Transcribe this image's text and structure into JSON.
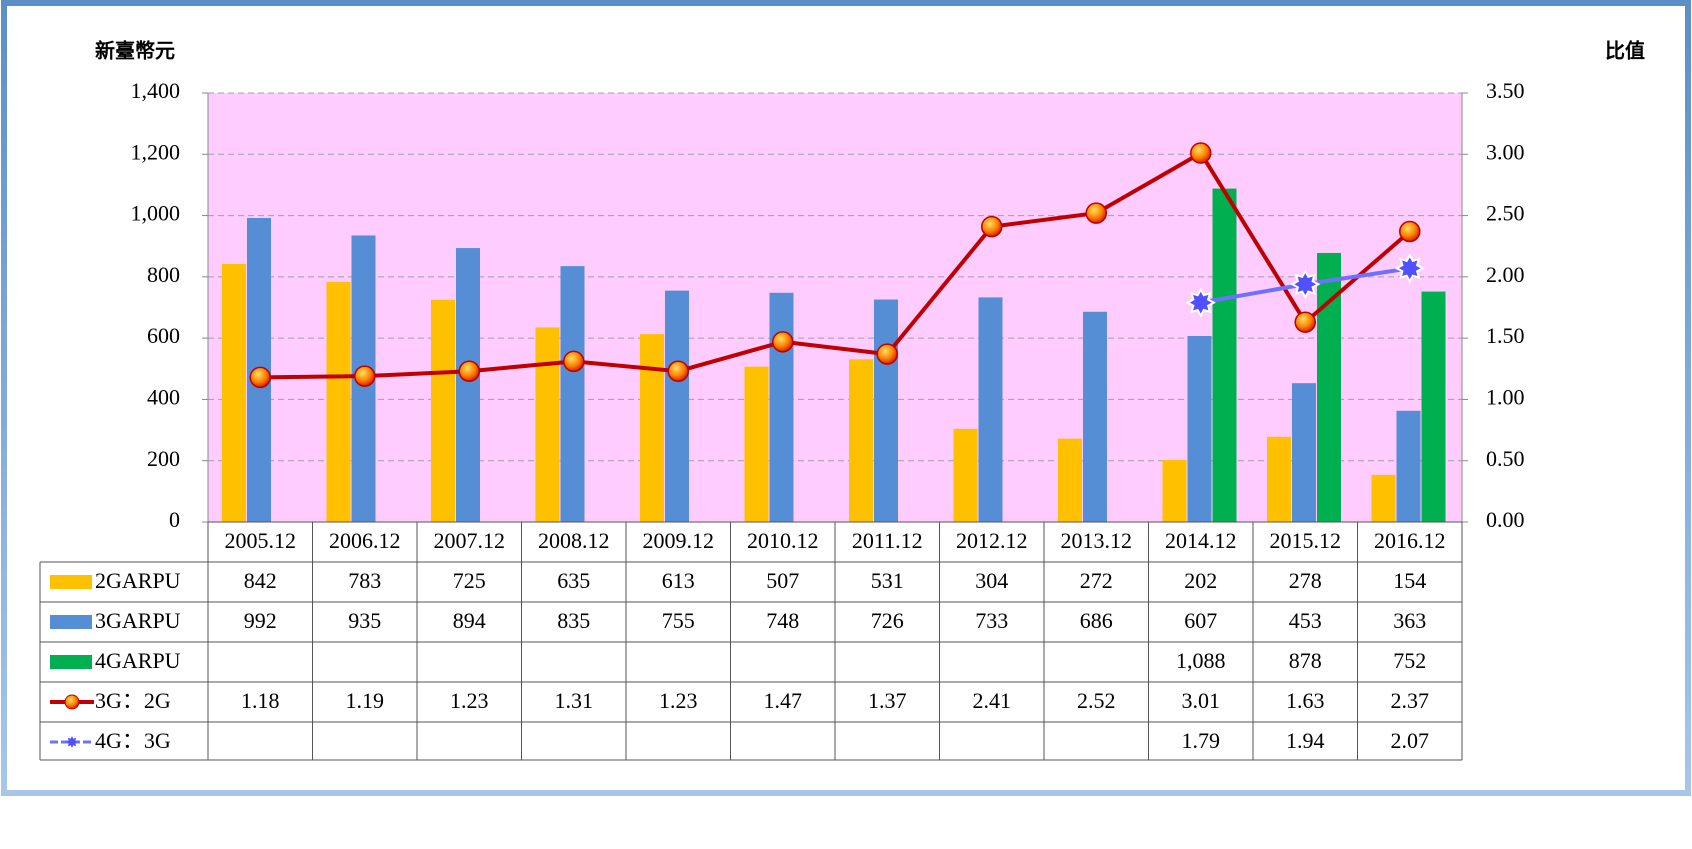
{
  "chart_data": {
    "type": "bar",
    "y_label": "新臺幣元",
    "y2_label": "比值",
    "categories": [
      "2005.12",
      "2006.12",
      "2007.12",
      "2008.12",
      "2009.12",
      "2010.12",
      "2011.12",
      "2012.12",
      "2013.12",
      "2014.12",
      "2015.12",
      "2016.12"
    ],
    "series": [
      {
        "name": "2GARPU",
        "type": "bar",
        "color": "#ffc000",
        "values": [
          842,
          783,
          725,
          635,
          613,
          507,
          531,
          304,
          272,
          202,
          278,
          154
        ]
      },
      {
        "name": "3GARPU",
        "type": "bar",
        "color": "#558ed5",
        "values": [
          992,
          935,
          894,
          835,
          755,
          748,
          726,
          733,
          686,
          607,
          453,
          363
        ]
      },
      {
        "name": "4GARPU",
        "type": "bar",
        "color": "#00b050",
        "values": [
          null,
          null,
          null,
          null,
          null,
          null,
          null,
          null,
          null,
          1088,
          878,
          752
        ],
        "value_labels": [
          null,
          null,
          null,
          null,
          null,
          null,
          null,
          null,
          null,
          "1,088",
          "878",
          "752"
        ]
      },
      {
        "name": "3G：2G",
        "type": "line",
        "axis": "y2",
        "color": "#c00000",
        "marker": "circle",
        "values": [
          1.18,
          1.19,
          1.23,
          1.31,
          1.23,
          1.47,
          1.37,
          2.41,
          2.52,
          3.01,
          1.63,
          2.37
        ]
      },
      {
        "name": "4G：3G",
        "type": "line",
        "axis": "y2",
        "color": "#7070ff",
        "marker": "star",
        "values": [
          null,
          null,
          null,
          null,
          null,
          null,
          null,
          null,
          null,
          1.79,
          1.94,
          2.07
        ]
      }
    ],
    "ylim": [
      0,
      1400
    ],
    "yticks": [
      0,
      200,
      400,
      600,
      800,
      {
        "value": 1000,
        "label": "1,000"
      },
      {
        "value": 1200,
        "label": "1,200"
      },
      {
        "value": 1400,
        "label": "1,400"
      }
    ],
    "y2lim": [
      0,
      3.5
    ],
    "y2ticks": [
      {
        "value": 0,
        "label": "0.00"
      },
      {
        "value": 0.5,
        "label": "0.50"
      },
      {
        "value": 1,
        "label": "1.00"
      },
      {
        "value": 1.5,
        "label": "1.50"
      },
      {
        "value": 2,
        "label": "2.00"
      },
      {
        "value": 2.5,
        "label": "2.50"
      },
      {
        "value": 3,
        "label": "3.00"
      },
      {
        "value": 3.5,
        "label": "3.50"
      }
    ],
    "grid": true,
    "data_table": true
  }
}
